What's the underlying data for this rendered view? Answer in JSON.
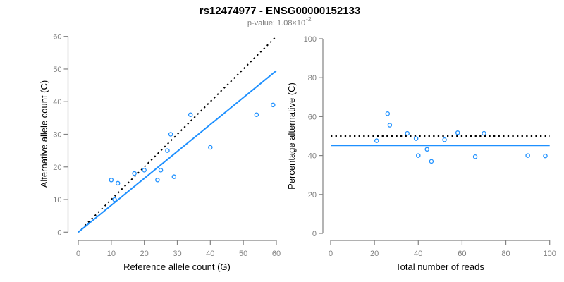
{
  "header": {
    "title": "rs12474977 - ENSG00000152133",
    "subtitle_prefix": "p-value: 1.08×10",
    "subtitle_exponent": "-2"
  },
  "colors": {
    "accent": "#1E90FF",
    "reference_line": "#000000",
    "axis_line": "#828282",
    "tick_text": "#7F7F7F",
    "title_text": "#000000",
    "subtitle_text": "#7F7F7F",
    "axis_label_text": "#000000",
    "background": "#FFFFFF"
  },
  "chart_data": [
    {
      "type": "scatter",
      "panel": "left",
      "xlabel": "Reference allele count (G)",
      "ylabel": "Alternative allele count (C)",
      "xlim": [
        0,
        60
      ],
      "ylim": [
        0,
        60
      ],
      "xticks": [
        0,
        10,
        20,
        30,
        40,
        50,
        60
      ],
      "yticks": [
        0,
        10,
        20,
        30,
        40,
        50,
        60
      ],
      "grid": false,
      "legend": "none",
      "marker": "open-circle",
      "points": [
        [
          10,
          16
        ],
        [
          11,
          10
        ],
        [
          12,
          15
        ],
        [
          17,
          18
        ],
        [
          20,
          19
        ],
        [
          24,
          16
        ],
        [
          25,
          19
        ],
        [
          27,
          25
        ],
        [
          28,
          30
        ],
        [
          29,
          17
        ],
        [
          34,
          36
        ],
        [
          40,
          26
        ],
        [
          54,
          36
        ],
        [
          59,
          39
        ]
      ],
      "lines": [
        {
          "label": "identity y = x",
          "style": "dotted",
          "color": "#000000",
          "from": [
            0,
            0
          ],
          "to": [
            59.6,
            59.6
          ]
        },
        {
          "label": "fit slope 0.83",
          "style": "solid",
          "color": "#1E90FF",
          "from": [
            0,
            0
          ],
          "to": [
            60,
            49.5
          ]
        }
      ]
    },
    {
      "type": "scatter",
      "panel": "right",
      "xlabel": "Total number of reads",
      "ylabel": "Percentage alternative (C)",
      "xlim": [
        0,
        100
      ],
      "ylim": [
        0,
        100
      ],
      "xticks": [
        0,
        20,
        40,
        60,
        80,
        100
      ],
      "yticks": [
        0,
        20,
        40,
        60,
        80,
        100
      ],
      "grid": false,
      "legend": "none",
      "marker": "open-circle",
      "points": [
        [
          21,
          47.6
        ],
        [
          26,
          61.5
        ],
        [
          27,
          55.6
        ],
        [
          35,
          51.4
        ],
        [
          39,
          48.7
        ],
        [
          40,
          40.0
        ],
        [
          44,
          43.2
        ],
        [
          46,
          37.0
        ],
        [
          52,
          48.1
        ],
        [
          58,
          51.7
        ],
        [
          66,
          39.4
        ],
        [
          70,
          51.4
        ],
        [
          90,
          40.0
        ],
        [
          98,
          39.8
        ]
      ],
      "lines": [
        {
          "label": "expected 50 percent",
          "style": "dotted",
          "color": "#000000",
          "from": [
            0,
            50
          ],
          "to": [
            100,
            50
          ]
        },
        {
          "label": "mean percentage 45.2",
          "style": "solid",
          "color": "#1E90FF",
          "from": [
            0,
            45.2
          ],
          "to": [
            100,
            45.2
          ]
        }
      ]
    }
  ]
}
